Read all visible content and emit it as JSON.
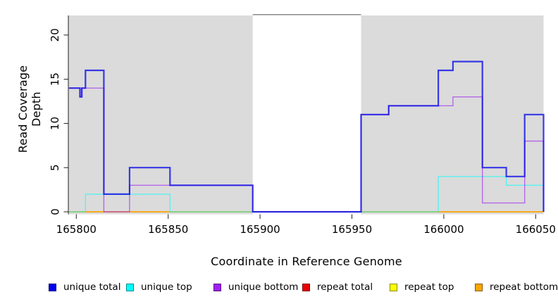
{
  "chart_data": {
    "type": "line",
    "subtype": "step-coverage",
    "title": "",
    "xlabel": "Coordinate in Reference Genome",
    "ylabel": "Read Coverage Depth",
    "xlim": [
      165796,
      166054
    ],
    "ylim": [
      0,
      22
    ],
    "x_ticks": [
      165800,
      165850,
      165900,
      165950,
      166000,
      166050
    ],
    "y_ticks": [
      0,
      5,
      10,
      15,
      20
    ],
    "grid": false,
    "plot_bg_color": "#DBDBDB",
    "gap_region": {
      "x_start": 165896,
      "x_end": 165955,
      "fill": "#FFFFFF",
      "top_border_color": "#8A8A8A"
    },
    "series": [
      {
        "name": "repeat total",
        "color": "#E00000",
        "opacity": 1,
        "width": 1.2,
        "end_drop": false,
        "steps": [
          [
            165796,
            0
          ]
        ]
      },
      {
        "name": "repeat top",
        "color": "#FFFF00",
        "opacity": 1,
        "width": 1.2,
        "end_drop": false,
        "steps": [
          [
            165796,
            0
          ]
        ]
      },
      {
        "name": "repeat bottom",
        "color": "#FFA500",
        "opacity": 1,
        "width": 1.6,
        "end_drop": false,
        "steps": [
          [
            165796,
            0
          ]
        ]
      },
      {
        "name": "unique top",
        "color": "#00FFFF",
        "opacity": 0.6,
        "width": 1.4,
        "end_drop": true,
        "steps": [
          [
            165796,
            0
          ],
          [
            165805,
            2
          ],
          [
            165851,
            0
          ],
          [
            165997,
            4
          ],
          [
            166034,
            3
          ]
        ]
      },
      {
        "name": "unique bottom",
        "color": "#A020F0",
        "opacity": 0.62,
        "width": 1.4,
        "end_drop": true,
        "steps": [
          [
            165796,
            14
          ],
          [
            165802,
            13
          ],
          [
            165803,
            14
          ],
          [
            165815,
            0
          ],
          [
            165829,
            3
          ],
          [
            165896,
            0
          ],
          [
            165955,
            11
          ],
          [
            165970,
            12
          ],
          [
            166005,
            13
          ],
          [
            166021,
            1
          ],
          [
            166044,
            8
          ]
        ]
      },
      {
        "name": "unique total",
        "color": "#1414E6",
        "opacity": 0.82,
        "width": 2.2,
        "end_drop": true,
        "steps": [
          [
            165796,
            14
          ],
          [
            165802,
            13
          ],
          [
            165803,
            14
          ],
          [
            165805,
            16
          ],
          [
            165815,
            2
          ],
          [
            165829,
            5
          ],
          [
            165851,
            3
          ],
          [
            165896,
            0
          ],
          [
            165955,
            11
          ],
          [
            165970,
            12
          ],
          [
            165997,
            16
          ],
          [
            166005,
            17
          ],
          [
            166021,
            5
          ],
          [
            166034,
            4
          ],
          [
            166044,
            11
          ]
        ]
      }
    ],
    "legend_position": "bottom",
    "legend": [
      {
        "label": "unique total",
        "color": "#0000E8",
        "x": 69
      },
      {
        "label": "unique top",
        "color": "#00FFFF",
        "x": 179
      },
      {
        "label": "unique bottom",
        "color": "#A020F0",
        "x": 303
      },
      {
        "label": "repeat total",
        "color": "#E80000",
        "x": 429
      },
      {
        "label": "repeat top",
        "color": "#FFFF00",
        "x": 553
      },
      {
        "label": "repeat bottom",
        "color": "#FFA500",
        "x": 674
      }
    ]
  }
}
